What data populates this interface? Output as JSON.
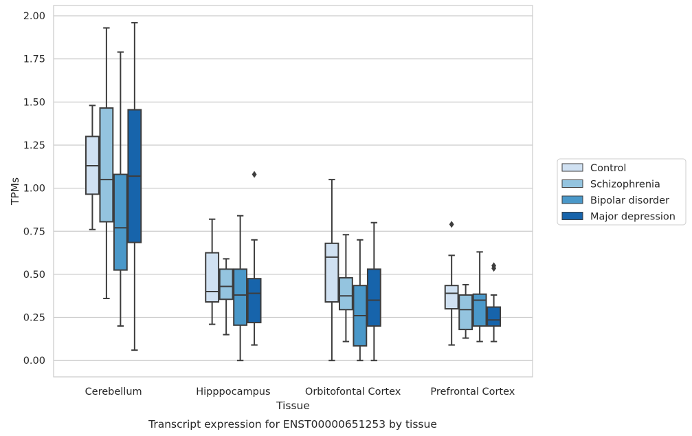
{
  "caption": "Transcript expression for ENST00000651253 by tissue",
  "chart_data": {
    "type": "box",
    "xlabel": "Tissue",
    "ylabel": "TPMs",
    "ylim": [
      -0.095,
      2.06
    ],
    "yticks": [
      0.0,
      0.25,
      0.5,
      0.75,
      1.0,
      1.25,
      1.5,
      1.75,
      2.0
    ],
    "ytick_labels": [
      "0.00",
      "0.25",
      "0.50",
      "0.75",
      "1.00",
      "1.25",
      "1.50",
      "1.75",
      "2.00"
    ],
    "grid": "horizontal",
    "legend_position": "right",
    "categories": [
      "Cerebellum",
      "Hipppocampus",
      "Orbitofontal Cortex",
      "Prefrontal Cortex"
    ],
    "series": [
      {
        "name": "Control",
        "color": "#d0e1f2",
        "boxes": [
          {
            "whislo": 0.76,
            "q1": 0.965,
            "med": 1.13,
            "q3": 1.3,
            "whishi": 1.48,
            "fliers": []
          },
          {
            "whislo": 0.21,
            "q1": 0.34,
            "med": 0.4,
            "q3": 0.625,
            "whishi": 0.82,
            "fliers": []
          },
          {
            "whislo": 0.0,
            "q1": 0.34,
            "med": 0.6,
            "q3": 0.68,
            "whishi": 1.05,
            "fliers": []
          },
          {
            "whislo": 0.09,
            "q1": 0.3,
            "med": 0.39,
            "q3": 0.435,
            "whishi": 0.61,
            "fliers": [
              0.79
            ]
          }
        ]
      },
      {
        "name": "Schizophrenia",
        "color": "#94c4df",
        "boxes": [
          {
            "whislo": 0.36,
            "q1": 0.805,
            "med": 1.05,
            "q3": 1.465,
            "whishi": 1.93,
            "fliers": []
          },
          {
            "whislo": 0.15,
            "q1": 0.355,
            "med": 0.43,
            "q3": 0.53,
            "whishi": 0.59,
            "fliers": []
          },
          {
            "whislo": 0.11,
            "q1": 0.295,
            "med": 0.375,
            "q3": 0.48,
            "whishi": 0.73,
            "fliers": []
          },
          {
            "whislo": 0.13,
            "q1": 0.18,
            "med": 0.295,
            "q3": 0.38,
            "whishi": 0.44,
            "fliers": []
          }
        ]
      },
      {
        "name": "Bipolar disorder",
        "color": "#4a98c9",
        "boxes": [
          {
            "whislo": 0.2,
            "q1": 0.525,
            "med": 0.77,
            "q3": 1.08,
            "whishi": 1.79,
            "fliers": []
          },
          {
            "whislo": 0.0,
            "q1": 0.205,
            "med": 0.38,
            "q3": 0.53,
            "whishi": 0.84,
            "fliers": []
          },
          {
            "whislo": 0.0,
            "q1": 0.085,
            "med": 0.26,
            "q3": 0.435,
            "whishi": 0.7,
            "fliers": []
          },
          {
            "whislo": 0.11,
            "q1": 0.2,
            "med": 0.35,
            "q3": 0.385,
            "whishi": 0.63,
            "fliers": []
          }
        ]
      },
      {
        "name": "Major depression",
        "color": "#1764ab",
        "boxes": [
          {
            "whislo": 0.06,
            "q1": 0.685,
            "med": 1.07,
            "q3": 1.455,
            "whishi": 1.96,
            "fliers": []
          },
          {
            "whislo": 0.09,
            "q1": 0.22,
            "med": 0.39,
            "q3": 0.475,
            "whishi": 0.7,
            "fliers": [
              1.08
            ]
          },
          {
            "whislo": 0.0,
            "q1": 0.2,
            "med": 0.35,
            "q3": 0.53,
            "whishi": 0.8,
            "fliers": []
          },
          {
            "whislo": 0.11,
            "q1": 0.2,
            "med": 0.235,
            "q3": 0.31,
            "whishi": 0.38,
            "fliers": [
              0.535,
              0.55
            ]
          }
        ]
      }
    ]
  }
}
